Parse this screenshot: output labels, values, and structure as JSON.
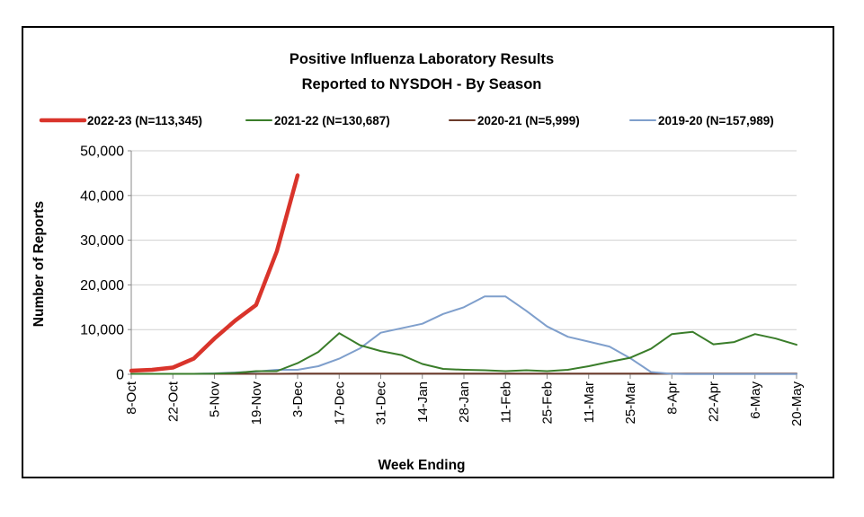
{
  "chart_data": {
    "type": "line",
    "title": [
      "Positive Influenza Laboratory Results",
      "Reported to NYSDOH - By Season"
    ],
    "xlabel": "Week Ending",
    "ylabel": "Number of Reports",
    "ylim": [
      0,
      50000
    ],
    "yticks": [
      0,
      10000,
      20000,
      30000,
      40000,
      50000
    ],
    "ytick_labels": [
      "0",
      "10,000",
      "20,000",
      "30,000",
      "40,000",
      "50,000"
    ],
    "x_tick_labels": [
      "8-Oct",
      "22-Oct",
      "5-Nov",
      "19-Nov",
      "3-Dec",
      "17-Dec",
      "31-Dec",
      "14-Jan",
      "28-Jan",
      "11-Feb",
      "25-Feb",
      "11-Mar",
      "25-Mar",
      "8-Apr",
      "22-Apr",
      "6-May",
      "20-May"
    ],
    "grid": true,
    "legend_position": "top",
    "series": [
      {
        "name": "2022-23 (N=113,345)",
        "color": "#d9342b",
        "values": [
          800,
          1000,
          1500,
          3500,
          8000,
          12000,
          15500,
          27500,
          44500
        ]
      },
      {
        "name": "2021-22 (N=130,687)",
        "color": "#3a7d2a",
        "values": [
          100,
          100,
          100,
          100,
          150,
          300,
          700,
          700,
          2500,
          5000,
          9200,
          6500,
          5200,
          4300,
          2300,
          1200,
          1000,
          900,
          700,
          900,
          700,
          1000,
          1800,
          2800,
          3700,
          5700,
          9000,
          9500,
          6700,
          7200,
          9000,
          8000,
          6600
        ]
      },
      {
        "name": "2020-21 (N=5,999)",
        "color": "#6b3a2a",
        "values": [
          100,
          100,
          100,
          100,
          100,
          100,
          100,
          100,
          150,
          150,
          150,
          150,
          150,
          150,
          150,
          150,
          150,
          150,
          150,
          150,
          150,
          150,
          150,
          150,
          150,
          150,
          150,
          150,
          150,
          150,
          150,
          150,
          150
        ]
      },
      {
        "name": "2019-20 (N=157,989)",
        "color": "#7f9fcc",
        "values": [
          100,
          100,
          100,
          100,
          200,
          400,
          600,
          1000,
          1000,
          1800,
          3500,
          5800,
          9300,
          10300,
          11300,
          13500,
          15000,
          17400,
          17400,
          14200,
          10700,
          8400,
          7300,
          6200,
          3600,
          500,
          100,
          50,
          50,
          50,
          50,
          50,
          50
        ]
      }
    ]
  }
}
